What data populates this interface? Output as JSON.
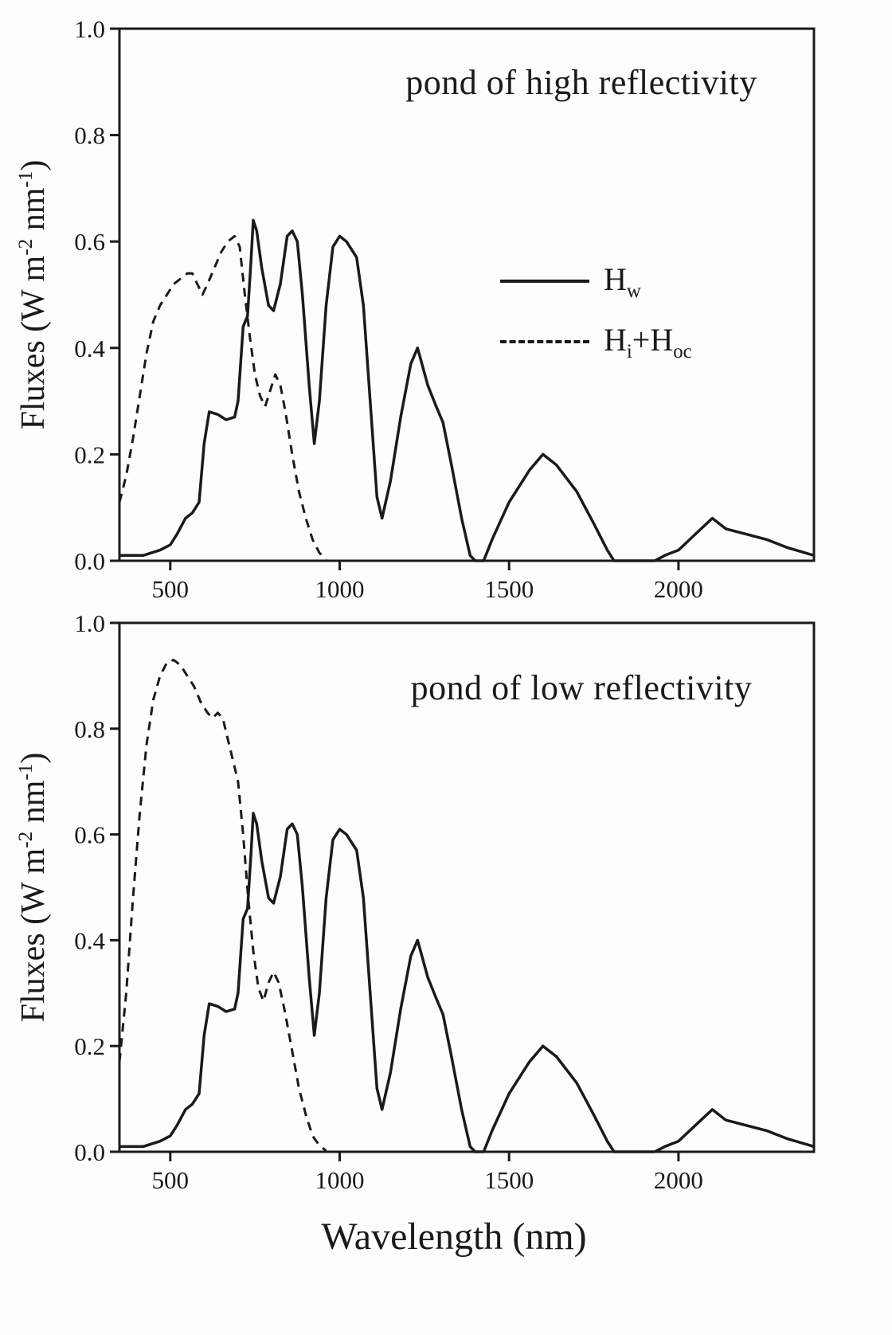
{
  "figure": {
    "xlabel": "Wavelength (nm)",
    "ylabel": {
      "pre": "Fluxes (W m",
      "sup1": "-2",
      "mid": " nm",
      "sup2": "-1",
      "post": ")"
    },
    "line_color": "#1a1a1a",
    "background": "#fdfdfd"
  },
  "chart_data": [
    {
      "type": "line",
      "title": "pond of high reflectivity",
      "xlabel": "Wavelength (nm)",
      "ylabel": "Fluxes (W m-2 nm-1)",
      "xlim": [
        350,
        2400
      ],
      "ylim": [
        0,
        1.0
      ],
      "xticks": [
        500,
        1000,
        1500,
        2000
      ],
      "xtick_labels": [
        "500",
        "1000",
        "1500",
        "2000"
      ],
      "yticks": [
        0.0,
        0.2,
        0.4,
        0.6,
        0.8,
        1.0
      ],
      "ytick_labels": [
        "0.0",
        "0.2",
        "0.4",
        "0.6",
        "0.8",
        "1.0"
      ],
      "grid": false,
      "legend": {
        "position": "center-right",
        "entries": [
          {
            "name": "Hw",
            "line": "solid",
            "parts": [
              "H",
              "w"
            ]
          },
          {
            "name": "Hi+Hoc",
            "line": "dashed",
            "parts": [
              "H",
              "i",
              "+H",
              "oc"
            ]
          }
        ]
      },
      "series": [
        {
          "name": "Hw",
          "style": "solid",
          "points": [
            [
              350,
              0.01
            ],
            [
              420,
              0.01
            ],
            [
              470,
              0.02
            ],
            [
              500,
              0.03
            ],
            [
              520,
              0.05
            ],
            [
              545,
              0.08
            ],
            [
              565,
              0.09
            ],
            [
              585,
              0.11
            ],
            [
              600,
              0.22
            ],
            [
              615,
              0.28
            ],
            [
              640,
              0.275
            ],
            [
              665,
              0.265
            ],
            [
              690,
              0.27
            ],
            [
              700,
              0.3
            ],
            [
              715,
              0.44
            ],
            [
              728,
              0.46
            ],
            [
              738,
              0.56
            ],
            [
              745,
              0.64
            ],
            [
              755,
              0.62
            ],
            [
              770,
              0.55
            ],
            [
              790,
              0.48
            ],
            [
              805,
              0.47
            ],
            [
              825,
              0.52
            ],
            [
              845,
              0.61
            ],
            [
              860,
              0.62
            ],
            [
              875,
              0.6
            ],
            [
              890,
              0.5
            ],
            [
              910,
              0.33
            ],
            [
              925,
              0.22
            ],
            [
              940,
              0.3
            ],
            [
              960,
              0.48
            ],
            [
              980,
              0.59
            ],
            [
              1000,
              0.61
            ],
            [
              1020,
              0.6
            ],
            [
              1050,
              0.57
            ],
            [
              1070,
              0.48
            ],
            [
              1090,
              0.3
            ],
            [
              1110,
              0.12
            ],
            [
              1125,
              0.08
            ],
            [
              1150,
              0.15
            ],
            [
              1180,
              0.27
            ],
            [
              1210,
              0.37
            ],
            [
              1230,
              0.4
            ],
            [
              1260,
              0.33
            ],
            [
              1285,
              0.29
            ],
            [
              1305,
              0.26
            ],
            [
              1330,
              0.18
            ],
            [
              1360,
              0.08
            ],
            [
              1385,
              0.01
            ],
            [
              1400,
              0
            ],
            [
              1425,
              0
            ],
            [
              1450,
              0.04
            ],
            [
              1500,
              0.11
            ],
            [
              1560,
              0.17
            ],
            [
              1600,
              0.2
            ],
            [
              1640,
              0.18
            ],
            [
              1700,
              0.13
            ],
            [
              1750,
              0.07
            ],
            [
              1790,
              0.02
            ],
            [
              1810,
              0
            ],
            [
              1930,
              0
            ],
            [
              1960,
              0.01
            ],
            [
              2000,
              0.02
            ],
            [
              2050,
              0.05
            ],
            [
              2100,
              0.08
            ],
            [
              2140,
              0.06
            ],
            [
              2200,
              0.05
            ],
            [
              2260,
              0.04
            ],
            [
              2320,
              0.025
            ],
            [
              2400,
              0.01
            ]
          ]
        },
        {
          "name": "Hi+Hoc",
          "style": "dashed",
          "points": [
            [
              350,
              0.11
            ],
            [
              370,
              0.16
            ],
            [
              390,
              0.23
            ],
            [
              410,
              0.31
            ],
            [
              430,
              0.39
            ],
            [
              450,
              0.45
            ],
            [
              470,
              0.48
            ],
            [
              490,
              0.5
            ],
            [
              510,
              0.52
            ],
            [
              530,
              0.53
            ],
            [
              550,
              0.54
            ],
            [
              565,
              0.54
            ],
            [
              580,
              0.52
            ],
            [
              595,
              0.5
            ],
            [
              610,
              0.52
            ],
            [
              630,
              0.55
            ],
            [
              650,
              0.58
            ],
            [
              670,
              0.6
            ],
            [
              690,
              0.61
            ],
            [
              705,
              0.59
            ],
            [
              720,
              0.5
            ],
            [
              735,
              0.42
            ],
            [
              750,
              0.35
            ],
            [
              765,
              0.31
            ],
            [
              780,
              0.29
            ],
            [
              795,
              0.32
            ],
            [
              810,
              0.35
            ],
            [
              825,
              0.33
            ],
            [
              840,
              0.28
            ],
            [
              860,
              0.2
            ],
            [
              880,
              0.13
            ],
            [
              900,
              0.08
            ],
            [
              920,
              0.04
            ],
            [
              940,
              0.015
            ],
            [
              960,
              0.003
            ]
          ]
        }
      ]
    },
    {
      "type": "line",
      "title": "pond of low reflectivity",
      "xlabel": "Wavelength (nm)",
      "ylabel": "Fluxes (W m-2 nm-1)",
      "xlim": [
        350,
        2400
      ],
      "ylim": [
        0,
        1.0
      ],
      "xticks": [
        500,
        1000,
        1500,
        2000
      ],
      "xtick_labels": [
        "500",
        "1000",
        "1500",
        "2000"
      ],
      "yticks": [
        0.0,
        0.2,
        0.4,
        0.6,
        0.8,
        1.0
      ],
      "ytick_labels": [
        "0.0",
        "0.2",
        "0.4",
        "0.6",
        "0.8",
        "1.0"
      ],
      "grid": false,
      "series": [
        {
          "name": "Hw",
          "style": "solid",
          "points": [
            [
              350,
              0.01
            ],
            [
              420,
              0.01
            ],
            [
              470,
              0.02
            ],
            [
              500,
              0.03
            ],
            [
              520,
              0.05
            ],
            [
              545,
              0.08
            ],
            [
              565,
              0.09
            ],
            [
              585,
              0.11
            ],
            [
              600,
              0.22
            ],
            [
              615,
              0.28
            ],
            [
              640,
              0.275
            ],
            [
              665,
              0.265
            ],
            [
              690,
              0.27
            ],
            [
              700,
              0.3
            ],
            [
              715,
              0.44
            ],
            [
              728,
              0.46
            ],
            [
              738,
              0.56
            ],
            [
              745,
              0.64
            ],
            [
              755,
              0.62
            ],
            [
              770,
              0.55
            ],
            [
              790,
              0.48
            ],
            [
              805,
              0.47
            ],
            [
              825,
              0.52
            ],
            [
              845,
              0.61
            ],
            [
              860,
              0.62
            ],
            [
              875,
              0.6
            ],
            [
              890,
              0.5
            ],
            [
              910,
              0.33
            ],
            [
              925,
              0.22
            ],
            [
              940,
              0.3
            ],
            [
              960,
              0.48
            ],
            [
              980,
              0.59
            ],
            [
              1000,
              0.61
            ],
            [
              1020,
              0.6
            ],
            [
              1050,
              0.57
            ],
            [
              1070,
              0.48
            ],
            [
              1090,
              0.3
            ],
            [
              1110,
              0.12
            ],
            [
              1125,
              0.08
            ],
            [
              1150,
              0.15
            ],
            [
              1180,
              0.27
            ],
            [
              1210,
              0.37
            ],
            [
              1230,
              0.4
            ],
            [
              1260,
              0.33
            ],
            [
              1285,
              0.29
            ],
            [
              1305,
              0.26
            ],
            [
              1330,
              0.18
            ],
            [
              1360,
              0.08
            ],
            [
              1385,
              0.01
            ],
            [
              1400,
              0
            ],
            [
              1425,
              0
            ],
            [
              1450,
              0.04
            ],
            [
              1500,
              0.11
            ],
            [
              1560,
              0.17
            ],
            [
              1600,
              0.2
            ],
            [
              1640,
              0.18
            ],
            [
              1700,
              0.13
            ],
            [
              1750,
              0.07
            ],
            [
              1790,
              0.02
            ],
            [
              1810,
              0
            ],
            [
              1930,
              0
            ],
            [
              1960,
              0.01
            ],
            [
              2000,
              0.02
            ],
            [
              2050,
              0.05
            ],
            [
              2100,
              0.08
            ],
            [
              2140,
              0.06
            ],
            [
              2200,
              0.05
            ],
            [
              2260,
              0.04
            ],
            [
              2320,
              0.025
            ],
            [
              2400,
              0.01
            ]
          ]
        },
        {
          "name": "Hi+Hoc",
          "style": "dashed",
          "points": [
            [
              350,
              0.17
            ],
            [
              370,
              0.3
            ],
            [
              390,
              0.48
            ],
            [
              410,
              0.64
            ],
            [
              430,
              0.77
            ],
            [
              450,
              0.855
            ],
            [
              470,
              0.9
            ],
            [
              490,
              0.925
            ],
            [
              510,
              0.93
            ],
            [
              530,
              0.92
            ],
            [
              550,
              0.9
            ],
            [
              570,
              0.88
            ],
            [
              590,
              0.85
            ],
            [
              610,
              0.83
            ],
            [
              625,
              0.82
            ],
            [
              640,
              0.83
            ],
            [
              655,
              0.82
            ],
            [
              670,
              0.78
            ],
            [
              685,
              0.74
            ],
            [
              700,
              0.7
            ],
            [
              715,
              0.6
            ],
            [
              730,
              0.48
            ],
            [
              745,
              0.38
            ],
            [
              760,
              0.31
            ],
            [
              775,
              0.285
            ],
            [
              790,
              0.32
            ],
            [
              805,
              0.34
            ],
            [
              820,
              0.32
            ],
            [
              840,
              0.26
            ],
            [
              860,
              0.19
            ],
            [
              880,
              0.12
            ],
            [
              900,
              0.07
            ],
            [
              920,
              0.03
            ],
            [
              940,
              0.012
            ],
            [
              960,
              0.002
            ]
          ]
        }
      ]
    }
  ]
}
